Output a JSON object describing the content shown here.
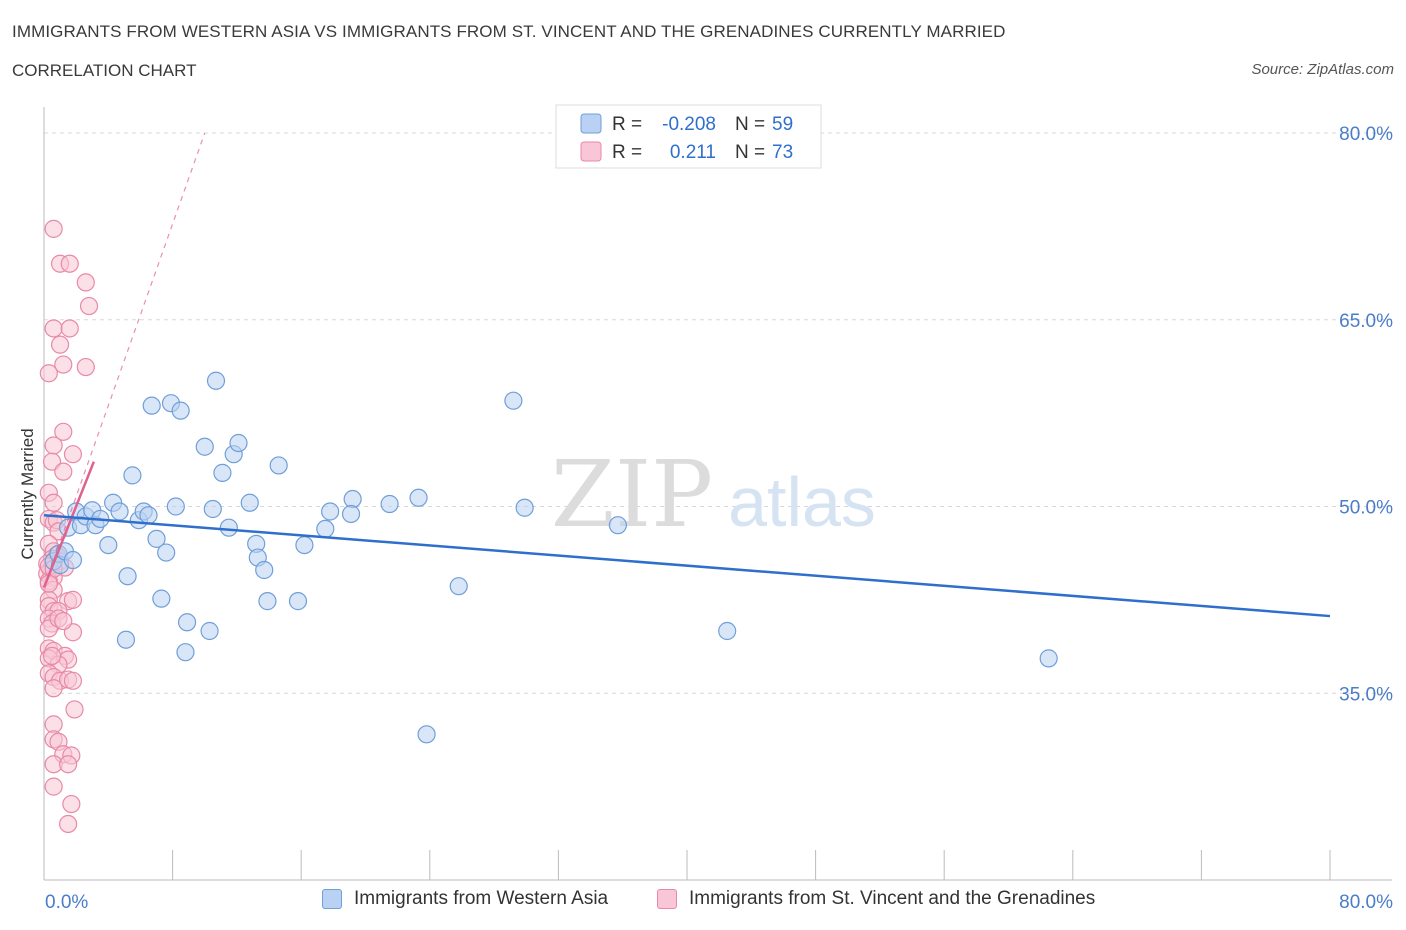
{
  "title": "IMMIGRANTS FROM WESTERN ASIA VS IMMIGRANTS FROM ST. VINCENT AND THE GRENADINES CURRENTLY MARRIED",
  "subtitle": "CORRELATION CHART",
  "source": "Source: ZipAtlas.com",
  "watermark": {
    "zip": "ZIP",
    "atlas": "atlas"
  },
  "colors": {
    "blue_fill": "#b9d1f3",
    "blue_stroke": "#6f9fd8",
    "blue_line": "#2f6fcc",
    "pink_fill": "#f8c6d6",
    "pink_stroke": "#e889a8",
    "pink_line": "#e0608e",
    "axis_label": "#4a7cc9",
    "grid": "#d8d8d8"
  },
  "legend_top": {
    "series": [
      {
        "r_label": "R =",
        "r_value": "-0.208",
        "n_label": "N =",
        "n_value": "59"
      },
      {
        "r_label": "R =",
        "r_value": "0.211",
        "n_label": "N =",
        "n_value": "73"
      }
    ]
  },
  "legend_bottom": [
    {
      "label": "Immigrants from Western Asia"
    },
    {
      "label": "Immigrants from St. Vincent and the Grenadines"
    }
  ],
  "chart_data": {
    "type": "scatter",
    "title": "IMMIGRANTS FROM WESTERN ASIA VS IMMIGRANTS FROM ST. VINCENT AND THE GRENADINES CURRENTLY MARRIED",
    "xlabel": "",
    "ylabel": "Currently Married",
    "xlim": [
      0,
      80
    ],
    "ylim": [
      20,
      80
    ],
    "x_tick_labels": [
      "0.0%",
      "80.0%"
    ],
    "y_ticks": [
      35,
      50,
      65,
      80
    ],
    "y_tick_labels": [
      "35.0%",
      "50.0%",
      "65.0%",
      "80.0%"
    ],
    "grid": true,
    "series": [
      {
        "name": "Immigrants from Western Asia",
        "color": "blue",
        "trend": {
          "x": [
            0,
            80
          ],
          "y": [
            49.3,
            41.2
          ],
          "style": "solid"
        },
        "points": [
          [
            0.6,
            45.6
          ],
          [
            0.9,
            46.2
          ],
          [
            1.0,
            45.3
          ],
          [
            1.3,
            46.4
          ],
          [
            1.5,
            48.3
          ],
          [
            1.8,
            45.7
          ],
          [
            2.0,
            49.6
          ],
          [
            2.3,
            48.5
          ],
          [
            2.6,
            49.2
          ],
          [
            3.0,
            49.7
          ],
          [
            3.2,
            48.5
          ],
          [
            3.5,
            49.0
          ],
          [
            4.0,
            46.9
          ],
          [
            4.3,
            50.3
          ],
          [
            4.7,
            49.6
          ],
          [
            5.1,
            39.3
          ],
          [
            5.2,
            44.4
          ],
          [
            5.5,
            52.5
          ],
          [
            5.9,
            48.9
          ],
          [
            6.2,
            49.6
          ],
          [
            6.5,
            49.3
          ],
          [
            6.7,
            58.1
          ],
          [
            7.0,
            47.4
          ],
          [
            7.3,
            42.6
          ],
          [
            7.6,
            46.3
          ],
          [
            7.9,
            58.3
          ],
          [
            8.2,
            50.0
          ],
          [
            8.5,
            57.7
          ],
          [
            8.9,
            40.7
          ],
          [
            8.8,
            38.3
          ],
          [
            10.0,
            54.8
          ],
          [
            10.3,
            40.0
          ],
          [
            10.5,
            49.8
          ],
          [
            10.7,
            60.1
          ],
          [
            11.1,
            52.7
          ],
          [
            11.5,
            48.3
          ],
          [
            11.8,
            54.2
          ],
          [
            12.1,
            55.1
          ],
          [
            12.8,
            50.3
          ],
          [
            13.2,
            47.0
          ],
          [
            13.3,
            45.9
          ],
          [
            13.7,
            44.9
          ],
          [
            13.9,
            42.4
          ],
          [
            14.6,
            53.3
          ],
          [
            15.8,
            42.4
          ],
          [
            16.2,
            46.9
          ],
          [
            17.5,
            48.2
          ],
          [
            17.8,
            49.6
          ],
          [
            19.2,
            50.6
          ],
          [
            19.1,
            49.4
          ],
          [
            21.5,
            50.2
          ],
          [
            23.3,
            50.7
          ],
          [
            23.8,
            31.7
          ],
          [
            25.8,
            43.6
          ],
          [
            29.2,
            58.5
          ],
          [
            29.9,
            49.9
          ],
          [
            35.7,
            48.5
          ],
          [
            42.5,
            40.0
          ],
          [
            62.5,
            37.8
          ]
        ]
      },
      {
        "name": "Immigrants from St. Vincent and the Grenadines",
        "color": "pink",
        "trend": {
          "x": [
            0,
            3.1
          ],
          "y": [
            43.5,
            53.6
          ],
          "style": "solid",
          "extended_x": [
            0,
            10.0
          ],
          "extended_y": [
            43.5,
            80.0
          ],
          "extended_style": "dashed"
        },
        "points": [
          [
            0.6,
            72.3
          ],
          [
            1.0,
            69.5
          ],
          [
            1.6,
            69.5
          ],
          [
            2.6,
            68.0
          ],
          [
            2.8,
            66.1
          ],
          [
            0.6,
            64.3
          ],
          [
            1.6,
            64.3
          ],
          [
            1.0,
            63.0
          ],
          [
            1.2,
            61.4
          ],
          [
            2.6,
            61.2
          ],
          [
            0.3,
            60.7
          ],
          [
            1.2,
            56.0
          ],
          [
            0.6,
            54.9
          ],
          [
            1.8,
            54.2
          ],
          [
            0.5,
            53.6
          ],
          [
            1.2,
            52.8
          ],
          [
            0.3,
            51.1
          ],
          [
            0.6,
            50.3
          ],
          [
            0.3,
            49.0
          ],
          [
            0.6,
            48.7
          ],
          [
            0.8,
            48.9
          ],
          [
            0.9,
            48.0
          ],
          [
            0.3,
            47.0
          ],
          [
            0.6,
            46.4
          ],
          [
            0.8,
            46.1
          ],
          [
            0.5,
            45.8
          ],
          [
            0.2,
            45.4
          ],
          [
            1.0,
            45.6
          ],
          [
            1.3,
            45.1
          ],
          [
            0.4,
            44.9
          ],
          [
            0.2,
            44.6
          ],
          [
            0.6,
            44.3
          ],
          [
            0.3,
            44.0
          ],
          [
            0.6,
            43.3
          ],
          [
            0.3,
            42.5
          ],
          [
            1.5,
            42.4
          ],
          [
            1.8,
            42.5
          ],
          [
            0.3,
            42.0
          ],
          [
            0.6,
            41.6
          ],
          [
            0.9,
            41.6
          ],
          [
            0.3,
            41.0
          ],
          [
            0.5,
            40.6
          ],
          [
            0.3,
            40.2
          ],
          [
            1.8,
            39.9
          ],
          [
            0.3,
            38.6
          ],
          [
            0.6,
            38.4
          ],
          [
            1.3,
            38.0
          ],
          [
            0.3,
            37.8
          ],
          [
            1.5,
            37.7
          ],
          [
            0.9,
            37.3
          ],
          [
            0.3,
            36.6
          ],
          [
            0.6,
            36.3
          ],
          [
            1.0,
            36.0
          ],
          [
            1.5,
            36.1
          ],
          [
            1.8,
            36.0
          ],
          [
            0.6,
            35.4
          ],
          [
            1.9,
            33.7
          ],
          [
            0.6,
            32.5
          ],
          [
            0.6,
            31.3
          ],
          [
            0.9,
            31.1
          ],
          [
            1.2,
            30.1
          ],
          [
            1.7,
            30.0
          ],
          [
            0.6,
            29.3
          ],
          [
            1.5,
            29.3
          ],
          [
            0.6,
            27.5
          ],
          [
            1.7,
            26.1
          ],
          [
            1.5,
            24.5
          ],
          [
            0.3,
            45.2
          ],
          [
            0.6,
            45.0
          ],
          [
            0.3,
            43.8
          ],
          [
            0.9,
            41.0
          ],
          [
            0.5,
            38.0
          ],
          [
            1.2,
            40.8
          ]
        ]
      }
    ]
  }
}
